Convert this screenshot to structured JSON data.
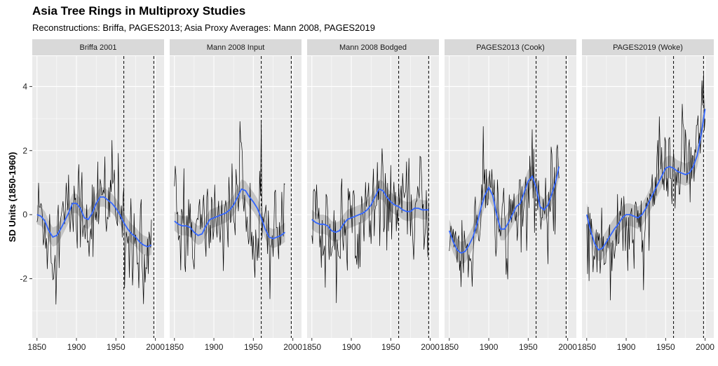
{
  "chart_data": {
    "type": "line",
    "title": "Asia Tree Rings in Multiproxy Studies",
    "subtitle": "Reconstructions: Briffa, PAGES2013; Asia Proxy Averages: Mann 2008, PAGES2019",
    "ylabel": "SD Units (1850-1960)",
    "xlim": [
      1844,
      2011
    ],
    "ylim": [
      -3.85,
      4.95
    ],
    "xticks": [
      1850,
      1900,
      1950,
      2000
    ],
    "yticks": [
      -2,
      0,
      2,
      4
    ],
    "vlines": [
      1960,
      1998
    ],
    "grid": true,
    "colors": {
      "panel_bg": "#ebebeb",
      "strip_bg": "#d9d9d9",
      "grid": "#ffffff",
      "annual": "#000000",
      "smooth": "#3366ff",
      "band": "#bdbdbd"
    },
    "panels": [
      {
        "title": "Briffa 2001",
        "x_range": [
          1850,
          1995
        ],
        "smooth": {
          "x": [
            1850,
            1855,
            1860,
            1865,
            1870,
            1875,
            1880,
            1885,
            1890,
            1895,
            1900,
            1905,
            1910,
            1915,
            1920,
            1925,
            1930,
            1935,
            1940,
            1945,
            1950,
            1955,
            1960,
            1965,
            1970,
            1975,
            1980,
            1985,
            1990,
            1995
          ],
          "y": [
            0.0,
            -0.05,
            -0.2,
            -0.5,
            -0.7,
            -0.65,
            -0.45,
            -0.2,
            0.05,
            0.35,
            0.35,
            0.2,
            -0.1,
            -0.15,
            0.05,
            0.35,
            0.55,
            0.55,
            0.45,
            0.35,
            0.2,
            0.0,
            -0.25,
            -0.45,
            -0.6,
            -0.7,
            -0.85,
            -0.95,
            -1.0,
            -0.95
          ]
        },
        "band_halfwidth": 0.3,
        "annual_noise": 0.75
      },
      {
        "title": "Mann 2008 Input",
        "x_range": [
          1850,
          1990
        ],
        "smooth": {
          "x": [
            1850,
            1855,
            1860,
            1865,
            1870,
            1875,
            1880,
            1885,
            1890,
            1895,
            1900,
            1905,
            1910,
            1915,
            1920,
            1925,
            1930,
            1935,
            1940,
            1945,
            1950,
            1955,
            1960,
            1965,
            1970,
            1975,
            1980,
            1985,
            1990
          ],
          "y": [
            -0.2,
            -0.3,
            -0.35,
            -0.35,
            -0.4,
            -0.55,
            -0.65,
            -0.6,
            -0.35,
            -0.15,
            -0.1,
            -0.05,
            0.0,
            0.05,
            0.15,
            0.3,
            0.55,
            0.8,
            0.75,
            0.55,
            0.4,
            0.2,
            -0.1,
            -0.45,
            -0.7,
            -0.75,
            -0.7,
            -0.65,
            -0.55
          ]
        },
        "band_halfwidth": 0.3,
        "annual_noise": 0.75
      },
      {
        "title": "Mann 2008 Bodged",
        "x_range": [
          1850,
          1998
        ],
        "smooth": {
          "x": [
            1850,
            1855,
            1860,
            1865,
            1870,
            1875,
            1880,
            1885,
            1890,
            1895,
            1900,
            1905,
            1910,
            1915,
            1920,
            1925,
            1930,
            1935,
            1940,
            1945,
            1950,
            1955,
            1960,
            1965,
            1970,
            1975,
            1980,
            1985,
            1990,
            1995,
            1998
          ],
          "y": [
            -0.15,
            -0.25,
            -0.3,
            -0.3,
            -0.35,
            -0.5,
            -0.55,
            -0.5,
            -0.3,
            -0.15,
            -0.1,
            -0.05,
            0.0,
            0.05,
            0.15,
            0.3,
            0.55,
            0.8,
            0.75,
            0.55,
            0.4,
            0.3,
            0.25,
            0.15,
            0.1,
            0.1,
            0.2,
            0.2,
            0.15,
            0.15,
            0.15
          ]
        },
        "band_halfwidth": 0.3,
        "annual_noise": 0.7
      },
      {
        "title": "PAGES2013 (Cook)",
        "x_range": [
          1850,
          1989
        ],
        "smooth": {
          "x": [
            1850,
            1855,
            1860,
            1865,
            1870,
            1875,
            1880,
            1885,
            1890,
            1895,
            1900,
            1905,
            1910,
            1915,
            1920,
            1925,
            1930,
            1935,
            1940,
            1945,
            1950,
            1955,
            1960,
            1965,
            1970,
            1975,
            1980,
            1985,
            1989
          ],
          "y": [
            -0.5,
            -0.85,
            -1.1,
            -1.2,
            -1.15,
            -0.95,
            -0.7,
            -0.3,
            0.2,
            0.6,
            0.85,
            0.6,
            0.0,
            -0.45,
            -0.45,
            -0.25,
            0.0,
            0.25,
            0.35,
            0.7,
            1.05,
            1.2,
            0.85,
            0.25,
            0.15,
            0.3,
            0.65,
            1.05,
            1.5
          ]
        },
        "band_halfwidth": 0.35,
        "annual_noise": 0.7
      },
      {
        "title": "PAGES2019 (Woke)",
        "x_range": [
          1850,
          2000
        ],
        "smooth": {
          "x": [
            1850,
            1855,
            1860,
            1865,
            1870,
            1875,
            1880,
            1885,
            1890,
            1895,
            1900,
            1905,
            1910,
            1915,
            1920,
            1925,
            1930,
            1935,
            1940,
            1945,
            1950,
            1955,
            1960,
            1965,
            1970,
            1975,
            1980,
            1985,
            1990,
            1995,
            2000
          ],
          "y": [
            0.0,
            -0.5,
            -0.9,
            -1.1,
            -1.05,
            -0.85,
            -0.65,
            -0.45,
            -0.3,
            -0.1,
            0.0,
            0.0,
            -0.05,
            -0.1,
            0.0,
            0.2,
            0.45,
            0.7,
            0.95,
            1.2,
            1.45,
            1.5,
            1.45,
            1.35,
            1.3,
            1.25,
            1.3,
            1.5,
            1.85,
            2.5,
            3.3
          ]
        },
        "band_halfwidth": 0.35,
        "annual_noise": 0.75
      }
    ]
  }
}
